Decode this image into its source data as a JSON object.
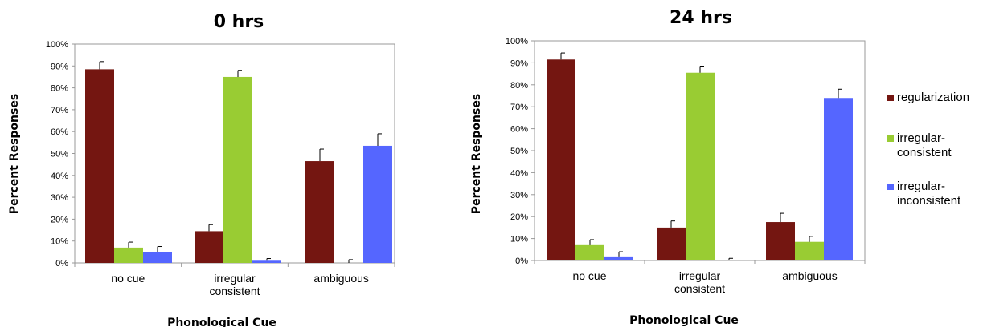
{
  "legend": {
    "placement": "right",
    "entries": [
      {
        "lines": [
          "regularization"
        ],
        "color": "#741611"
      },
      {
        "lines": [
          "irregular-",
          "consistent"
        ],
        "color": "#99cc33"
      },
      {
        "lines": [
          "irregular-",
          "inconsistent"
        ],
        "color": "#5566ff"
      }
    ]
  },
  "chart_data": [
    {
      "type": "bar",
      "title": "0 hrs",
      "xlabel": "Phonological Cue",
      "ylabel": "Percent Responses",
      "ylim": [
        0,
        100
      ],
      "y_ticks": [
        "0%",
        "10%",
        "20%",
        "30%",
        "40%",
        "50%",
        "60%",
        "70%",
        "80%",
        "90%",
        "100%"
      ],
      "grid": false,
      "categories": [
        [
          "no cue"
        ],
        [
          "irregular",
          "consistent"
        ],
        [
          "ambiguous"
        ]
      ],
      "series": [
        {
          "name": "regularization",
          "color": "#741611",
          "values": [
            88.5,
            14.5,
            46.5
          ],
          "errors": [
            3.5,
            3,
            5.5
          ]
        },
        {
          "name": "irregular-consistent",
          "color": "#99cc33",
          "values": [
            7,
            85,
            0
          ],
          "errors": [
            2.5,
            3,
            1.5
          ]
        },
        {
          "name": "irregular-inconsistent",
          "color": "#5566ff",
          "values": [
            5,
            1,
            53.5
          ],
          "errors": [
            2.5,
            1,
            5.5
          ]
        }
      ]
    },
    {
      "type": "bar",
      "title": "24 hrs",
      "xlabel": "Phonological Cue",
      "ylabel": "Percent Responses",
      "ylim": [
        0,
        100
      ],
      "y_ticks": [
        "0%",
        "10%",
        "20%",
        "30%",
        "40%",
        "50%",
        "60%",
        "70%",
        "80%",
        "90%",
        "100%"
      ],
      "grid": false,
      "categories": [
        [
          "no cue"
        ],
        [
          "irregular",
          "consistent"
        ],
        [
          "ambiguous"
        ]
      ],
      "series": [
        {
          "name": "regularization",
          "color": "#741611",
          "values": [
            91.5,
            15,
            17.5
          ],
          "errors": [
            3,
            3,
            4
          ]
        },
        {
          "name": "irregular-consistent",
          "color": "#99cc33",
          "values": [
            7,
            85.5,
            8.5
          ],
          "errors": [
            2.5,
            3,
            2.5
          ]
        },
        {
          "name": "irregular-inconsistent",
          "color": "#5566ff",
          "values": [
            1.5,
            0,
            74
          ],
          "errors": [
            2.5,
            1,
            4
          ]
        }
      ]
    }
  ]
}
